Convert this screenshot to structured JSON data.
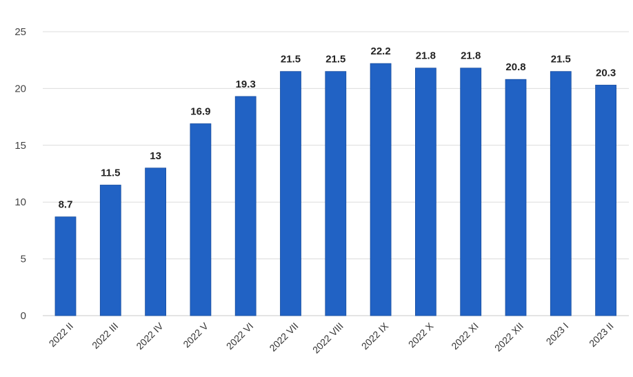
{
  "chart_data": {
    "type": "bar",
    "title": "",
    "xlabel": "",
    "ylabel": "",
    "ylim": [
      0,
      25
    ],
    "yticks": [
      0,
      5,
      10,
      15,
      20,
      25
    ],
    "grid": true,
    "legend": "none",
    "bar_color": "#2162C4",
    "categories": [
      "2022 II",
      "2022 III",
      "2022 IV",
      "2022 V",
      "2022 VI",
      "2022 VII",
      "2022 VIII",
      "2022 IX",
      "2022 X",
      "2022 XI",
      "2022 XII",
      "2023 I",
      "2023 II"
    ],
    "values": [
      8.7,
      11.5,
      13,
      16.9,
      19.3,
      21.5,
      21.5,
      22.2,
      21.8,
      21.8,
      20.8,
      21.5,
      20.3
    ],
    "value_labels": [
      "8.7",
      "11.5",
      "13",
      "16.9",
      "19.3",
      "21.5",
      "21.5",
      "22.2",
      "21.8",
      "21.8",
      "20.8",
      "21.5",
      "20.3"
    ]
  }
}
